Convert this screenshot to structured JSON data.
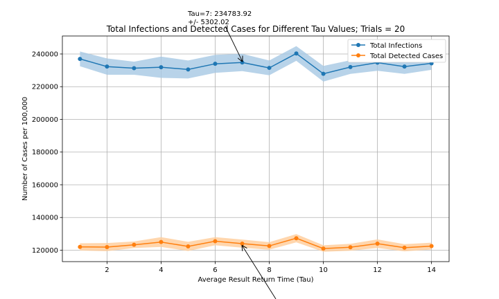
{
  "chart_data": {
    "type": "line",
    "title": "Total Infections and Detected Cases for Different Tau Values; Trials = 20",
    "xlabel": "Average Result Return Time (Tau)",
    "ylabel": "Number of Cases per 100,000",
    "xlim": [
      0.35,
      14.65
    ],
    "ylim": [
      113000,
      251000
    ],
    "xticks": [
      2,
      4,
      6,
      8,
      10,
      12,
      14
    ],
    "yticks": [
      120000,
      140000,
      160000,
      180000,
      200000,
      220000,
      240000
    ],
    "grid": true,
    "legend_position": "top-right",
    "x": [
      1,
      2,
      3,
      4,
      5,
      6,
      7,
      8,
      9,
      10,
      11,
      12,
      13,
      14
    ],
    "series": [
      {
        "name": "Total Infections",
        "color": "#1f77b4",
        "band_color": "#a6c8e3",
        "values": [
          237000,
          232300,
          231300,
          231900,
          230500,
          234000,
          234800,
          231500,
          240300,
          227900,
          232000,
          234700,
          232300,
          234300
        ],
        "std": [
          4500,
          5000,
          4000,
          6500,
          5500,
          5500,
          5300,
          4500,
          4500,
          4800,
          4200,
          5000,
          4500,
          4000
        ]
      },
      {
        "name": "Total Detected Cases",
        "color": "#ff7f0e",
        "band_color": "#ffcc99",
        "values": [
          122000,
          121900,
          123300,
          125000,
          122300,
          125500,
          124000,
          122600,
          127300,
          121000,
          121800,
          124000,
          121500,
          122500
        ],
        "std": [
          2200,
          2500,
          2000,
          3000,
          2800,
          2500,
          2500,
          2300,
          2500,
          2000,
          2100,
          2600,
          2200,
          2100
        ]
      }
    ],
    "annotations": [
      {
        "text_line1": "Tau=7: 234783.92",
        "text_line2": "+/- 5302.02",
        "x": 7,
        "y": 234783.92
      }
    ]
  }
}
